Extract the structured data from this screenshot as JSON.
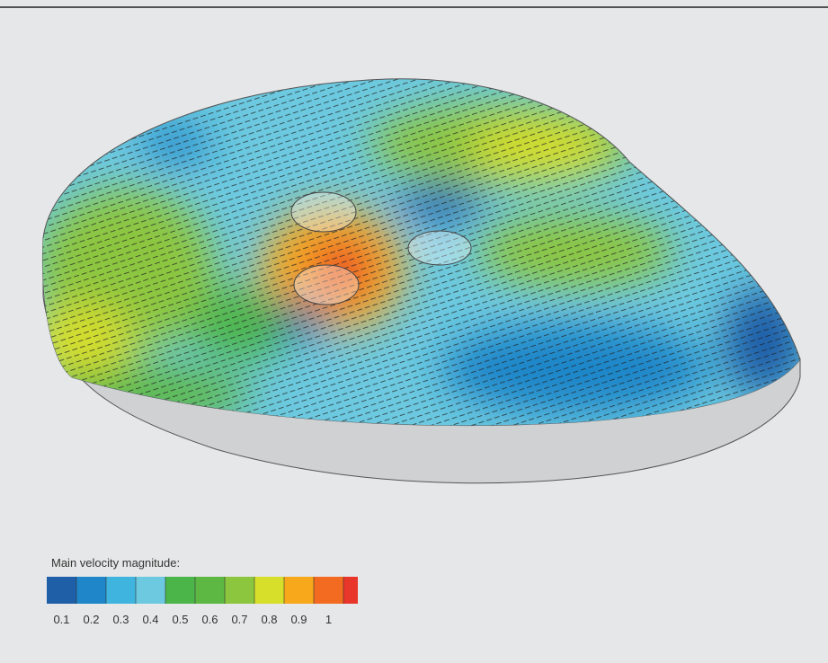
{
  "legend": {
    "title": "Main velocity magnitude:",
    "colors": [
      "#1f5fa8",
      "#1e86c9",
      "#3fb4de",
      "#6cc9e0",
      "#4cb54a",
      "#5db843",
      "#8cc63f",
      "#d8df2a",
      "#f7a81b",
      "#f26b21",
      "#e8362b"
    ],
    "ticks": [
      0.1,
      0.2,
      0.3,
      0.4,
      0.5,
      0.6,
      0.7,
      0.8,
      0.9,
      1
    ]
  }
}
